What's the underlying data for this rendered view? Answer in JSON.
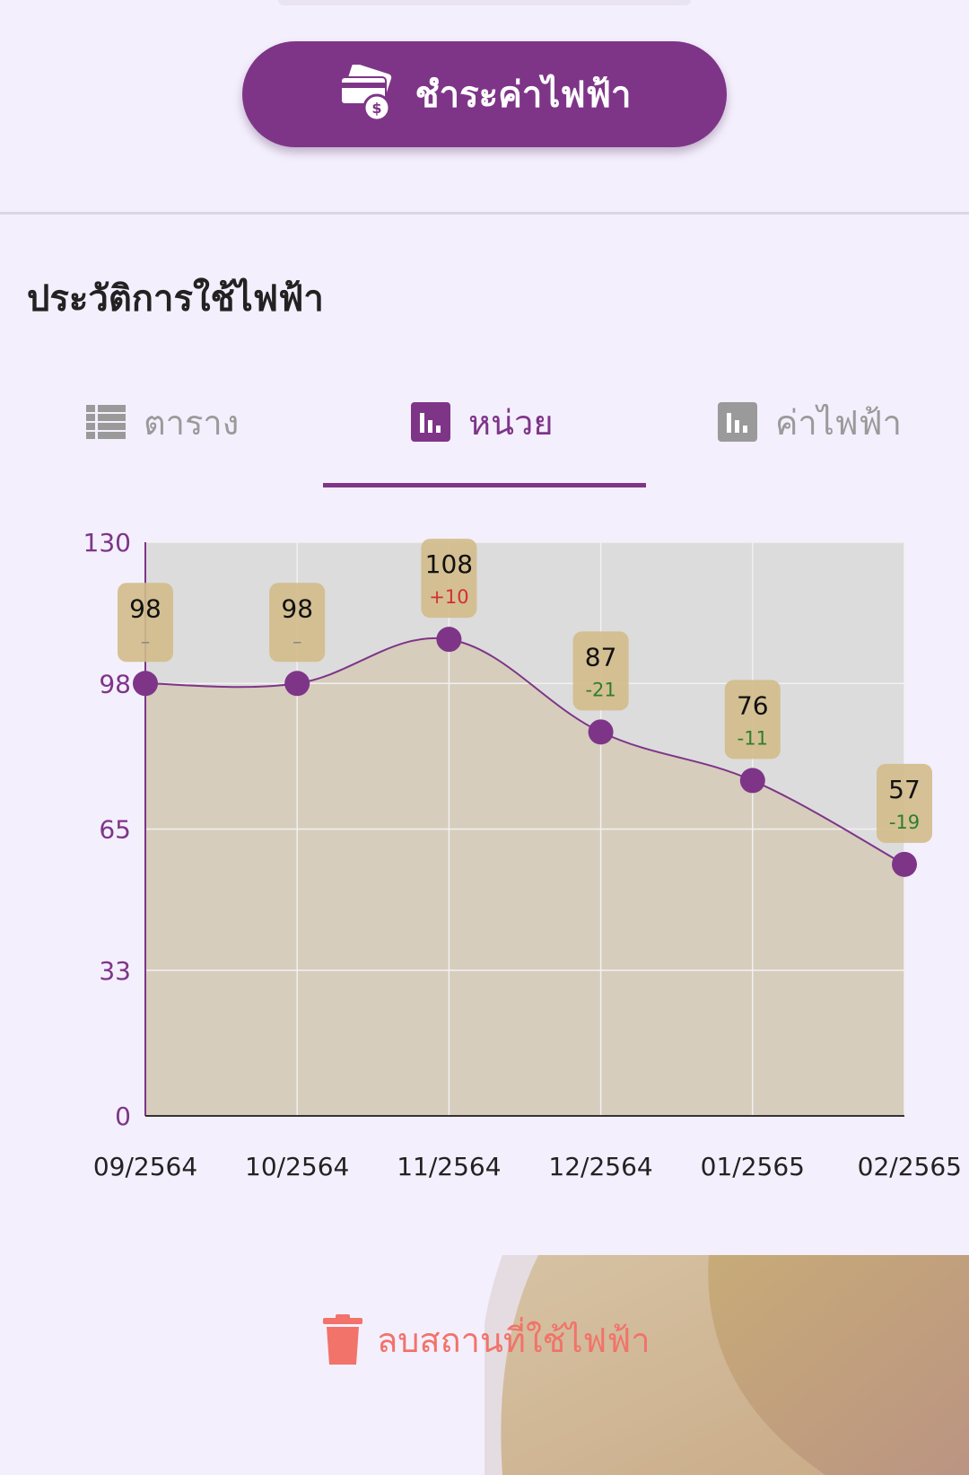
{
  "pay_button": {
    "label": "ชำระค่าไฟฟ้า",
    "icon": "card-payment-icon"
  },
  "section": {
    "title": "ประวัติการใช้ไฟฟ้า"
  },
  "tabs": [
    {
      "label": "ตาราง",
      "icon": "list-icon",
      "active": false
    },
    {
      "label": "หน่วย",
      "icon": "bar-chart-icon",
      "active": true
    },
    {
      "label": "ค่าไฟฟ้า",
      "icon": "bar-chart-icon",
      "active": false
    }
  ],
  "chart_data": {
    "type": "area",
    "categories": [
      "09/2564",
      "10/2564",
      "11/2564",
      "12/2564",
      "01/2565",
      "02/2565"
    ],
    "values": [
      98,
      98,
      108,
      87,
      76,
      57
    ],
    "changes": [
      "–",
      "–",
      "+10",
      "-21",
      "-11",
      "-19"
    ],
    "yticks": [
      "0",
      "33",
      "65",
      "98",
      "130"
    ],
    "ylim": [
      0,
      130
    ],
    "grid": true,
    "colors": {
      "line": "#7e3588",
      "point": "#7e3588",
      "fill": "#d6cdbd",
      "plot_bg": "#dcdcdc",
      "label_bg": "#d2bb8a",
      "increase": "#d32f2f",
      "decrease": "#2e7d32",
      "neutral": "#888888",
      "axis_text": "#7e3588"
    }
  },
  "delete_button": {
    "label": "ลบสถานที่ใช้ไฟฟ้า",
    "icon": "trash-icon"
  },
  "colors": {
    "accent": "#7e3588",
    "background": "#f4effd",
    "danger": "#f1736a"
  }
}
